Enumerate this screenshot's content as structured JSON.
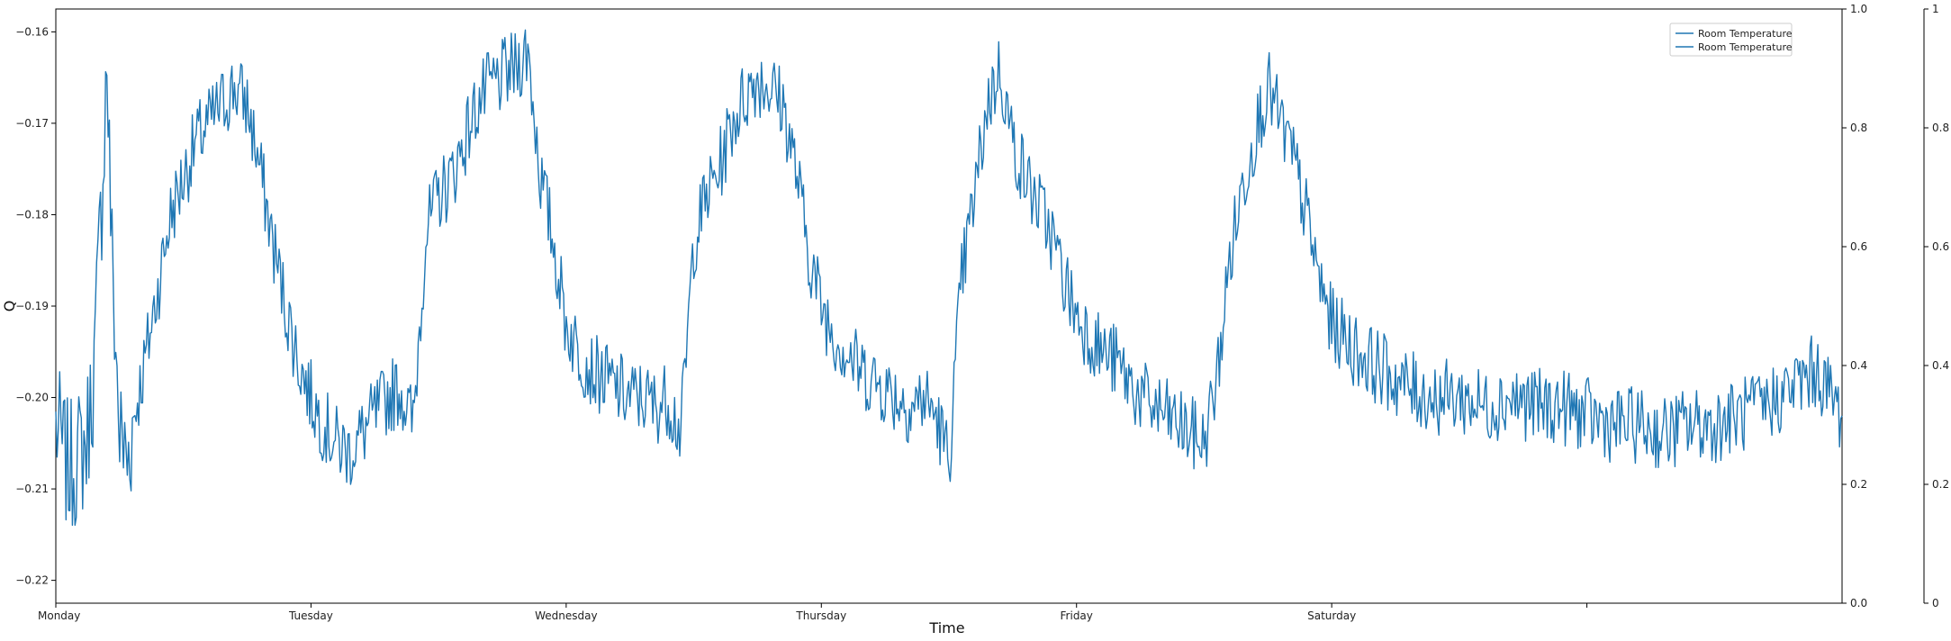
{
  "chart_data": {
    "type": "line",
    "xlabel": "Time",
    "ylabel": "Q",
    "x_ticks": [
      "Monday",
      "Tuesday",
      "Wednesday",
      "Thursday",
      "Friday",
      "Saturday",
      ""
    ],
    "x_range": [
      0,
      7
    ],
    "ylim": [
      -0.2225,
      -0.1575
    ],
    "y_ticks": [
      -0.16,
      -0.17,
      -0.18,
      -0.19,
      -0.2,
      -0.21,
      -0.22
    ],
    "y_tick_labels": [
      "−0.16",
      "−0.17",
      "−0.18",
      "−0.19",
      "−0.20",
      "−0.21",
      "−0.22"
    ],
    "right_axis_1": {
      "ylim": [
        0,
        1
      ],
      "ticks": [
        "0.0",
        "0.2",
        "0.4",
        "0.6",
        "0.8",
        "1.0"
      ]
    },
    "right_axis_2": {
      "ylim": [
        0,
        1
      ],
      "ticks": [
        "0",
        "0.2",
        "0.4",
        "0.6",
        "0.8",
        "1"
      ]
    },
    "legend": {
      "placement": "top-right",
      "entries": [
        "Room Temperature",
        "Room Temperature"
      ]
    },
    "grid": false,
    "series": [
      {
        "name": "Room Temperature",
        "color": "#1f77b4",
        "x": [
          0,
          0.05,
          0.12,
          0.15,
          0.18,
          0.2,
          0.22,
          0.25,
          0.28,
          0.3,
          0.35,
          0.4,
          0.45,
          0.5,
          0.55,
          0.6,
          0.65,
          0.7,
          0.75,
          0.8,
          0.85,
          0.9,
          0.95,
          1.0,
          1.05,
          1.1,
          1.15,
          1.2,
          1.25,
          1.3,
          1.35,
          1.4,
          1.45,
          1.5,
          1.55,
          1.6,
          1.65,
          1.7,
          1.75,
          1.8,
          1.85,
          1.9,
          1.95,
          2.0,
          2.05,
          2.1,
          2.15,
          2.2,
          2.25,
          2.3,
          2.35,
          2.4,
          2.45,
          2.5,
          2.55,
          2.6,
          2.65,
          2.7,
          2.75,
          2.8,
          2.85,
          2.9,
          2.95,
          3.0,
          3.05,
          3.1,
          3.15,
          3.2,
          3.25,
          3.3,
          3.35,
          3.4,
          3.45,
          3.5,
          3.55,
          3.6,
          3.65,
          3.7,
          3.75,
          3.8,
          3.85,
          3.9,
          3.95,
          4.0,
          4.05,
          4.1,
          4.15,
          4.2,
          4.25,
          4.3,
          4.35,
          4.4,
          4.45,
          4.5,
          4.55,
          4.6,
          4.65,
          4.7,
          4.75,
          4.8,
          4.85,
          4.9,
          4.95,
          5.0,
          5.1,
          5.2,
          5.3,
          5.4,
          5.5,
          5.6,
          5.7,
          5.8,
          5.9,
          6.0,
          6.1,
          6.2,
          6.3,
          6.4,
          6.5,
          6.6,
          6.7,
          6.8,
          6.9,
          7.0
        ],
        "values": [
          -0.203,
          -0.208,
          -0.205,
          -0.197,
          -0.178,
          -0.163,
          -0.185,
          -0.204,
          -0.207,
          -0.203,
          -0.196,
          -0.188,
          -0.18,
          -0.176,
          -0.172,
          -0.17,
          -0.168,
          -0.166,
          -0.168,
          -0.175,
          -0.183,
          -0.19,
          -0.196,
          -0.2,
          -0.203,
          -0.205,
          -0.206,
          -0.204,
          -0.202,
          -0.2,
          -0.199,
          -0.203,
          -0.182,
          -0.178,
          -0.176,
          -0.172,
          -0.168,
          -0.166,
          -0.165,
          -0.164,
          -0.162,
          -0.176,
          -0.183,
          -0.192,
          -0.195,
          -0.197,
          -0.198,
          -0.199,
          -0.2,
          -0.2,
          -0.201,
          -0.2,
          -0.204,
          -0.183,
          -0.178,
          -0.175,
          -0.17,
          -0.167,
          -0.165,
          -0.166,
          -0.168,
          -0.175,
          -0.184,
          -0.19,
          -0.193,
          -0.195,
          -0.197,
          -0.198,
          -0.199,
          -0.2,
          -0.201,
          -0.2,
          -0.202,
          -0.207,
          -0.187,
          -0.178,
          -0.168,
          -0.164,
          -0.172,
          -0.176,
          -0.179,
          -0.182,
          -0.187,
          -0.191,
          -0.193,
          -0.195,
          -0.196,
          -0.198,
          -0.2,
          -0.201,
          -0.202,
          -0.203,
          -0.204,
          -0.205,
          -0.198,
          -0.185,
          -0.177,
          -0.171,
          -0.166,
          -0.17,
          -0.174,
          -0.18,
          -0.187,
          -0.192,
          -0.195,
          -0.197,
          -0.199,
          -0.2,
          -0.2,
          -0.201,
          -0.2,
          -0.201,
          -0.201,
          -0.202,
          -0.203,
          -0.203,
          -0.204,
          -0.203,
          -0.203,
          -0.202,
          -0.201,
          -0.199,
          -0.197,
          -0.202
        ]
      },
      {
        "name": "Room Temperature",
        "color": "#1f77b4",
        "x": [],
        "values": []
      }
    ]
  }
}
